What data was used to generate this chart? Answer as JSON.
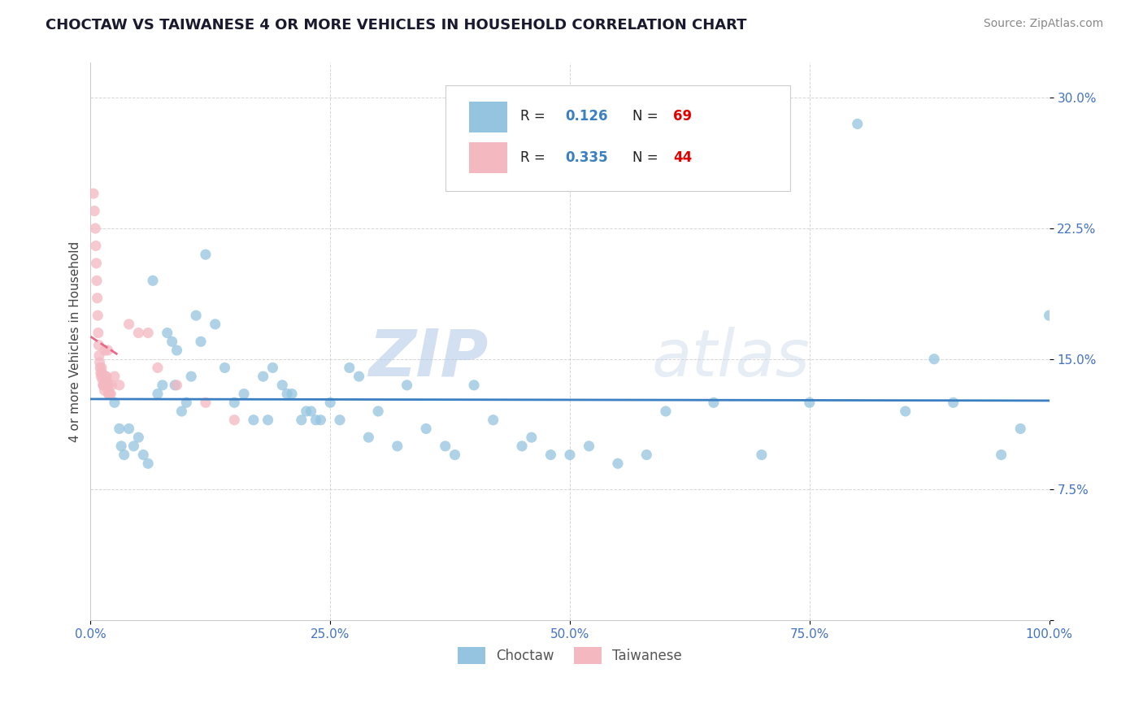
{
  "title": "CHOCTAW VS TAIWANESE 4 OR MORE VEHICLES IN HOUSEHOLD CORRELATION CHART",
  "source": "Source: ZipAtlas.com",
  "ylabel": "4 or more Vehicles in Household",
  "choctaw_color": "#94c4e0",
  "taiwanese_color": "#f4b8c1",
  "choctaw_line_color": "#3a7fc1",
  "taiwanese_line_color": "#e8698a",
  "choctaw_R": 0.126,
  "choctaw_N": 69,
  "taiwanese_R": 0.335,
  "taiwanese_N": 44,
  "choctaw_x": [
    2.5,
    3.0,
    3.2,
    3.5,
    4.0,
    4.5,
    5.0,
    5.5,
    6.0,
    6.5,
    7.0,
    7.5,
    8.0,
    8.5,
    9.0,
    9.5,
    10.0,
    10.5,
    11.0,
    11.5,
    12.0,
    13.0,
    14.0,
    15.0,
    16.0,
    17.0,
    18.0,
    19.0,
    20.0,
    20.5,
    21.0,
    22.0,
    22.5,
    23.0,
    24.0,
    25.0,
    26.0,
    27.0,
    28.0,
    29.0,
    30.0,
    32.0,
    33.0,
    35.0,
    37.0,
    38.0,
    40.0,
    42.0,
    45.0,
    46.0,
    48.0,
    50.0,
    52.0,
    55.0,
    58.0,
    60.0,
    65.0,
    70.0,
    75.0,
    80.0,
    85.0,
    88.0,
    90.0,
    95.0,
    97.0,
    100.0,
    8.8,
    18.5,
    23.5
  ],
  "choctaw_y": [
    12.5,
    11.0,
    10.0,
    9.5,
    11.0,
    10.0,
    10.5,
    9.5,
    9.0,
    19.5,
    13.0,
    13.5,
    16.5,
    16.0,
    15.5,
    12.0,
    12.5,
    14.0,
    17.5,
    16.0,
    21.0,
    17.0,
    14.5,
    12.5,
    13.0,
    11.5,
    14.0,
    14.5,
    13.5,
    13.0,
    13.0,
    11.5,
    12.0,
    12.0,
    11.5,
    12.5,
    11.5,
    14.5,
    14.0,
    10.5,
    12.0,
    10.0,
    13.5,
    11.0,
    10.0,
    9.5,
    13.5,
    11.5,
    10.0,
    10.5,
    9.5,
    9.5,
    10.0,
    9.0,
    9.5,
    12.0,
    12.5,
    9.5,
    12.5,
    28.5,
    12.0,
    15.0,
    12.5,
    9.5,
    11.0,
    17.5,
    13.5,
    11.5,
    11.5
  ],
  "taiwanese_x": [
    0.3,
    0.4,
    0.5,
    0.55,
    0.6,
    0.65,
    0.7,
    0.75,
    0.8,
    0.85,
    0.9,
    0.95,
    1.0,
    1.05,
    1.1,
    1.15,
    1.2,
    1.25,
    1.3,
    1.35,
    1.4,
    1.45,
    1.5,
    1.55,
    1.6,
    1.65,
    1.7,
    1.75,
    1.8,
    1.85,
    1.9,
    1.95,
    2.0,
    2.1,
    2.2,
    2.5,
    3.0,
    4.0,
    5.0,
    6.0,
    7.0,
    9.0,
    12.0,
    15.0
  ],
  "taiwanese_y": [
    24.5,
    23.5,
    22.5,
    21.5,
    20.5,
    19.5,
    18.5,
    17.5,
    16.5,
    15.8,
    15.2,
    14.8,
    14.5,
    14.2,
    14.0,
    14.5,
    14.2,
    13.8,
    13.5,
    13.5,
    13.5,
    13.2,
    15.5,
    14.0,
    13.8,
    14.0,
    13.5,
    13.5,
    15.5,
    13.0,
    13.5,
    13.0,
    13.0,
    13.0,
    13.5,
    14.0,
    13.5,
    17.0,
    16.5,
    16.5,
    14.5,
    13.5,
    12.5,
    11.5
  ],
  "watermark_zip": "ZIP",
  "watermark_atlas": "atlas",
  "xlim": [
    0,
    100
  ],
  "ylim": [
    0,
    32
  ],
  "ytick_vals": [
    0,
    7.5,
    15.0,
    22.5,
    30.0
  ],
  "ytick_labels": [
    "",
    "7.5%",
    "15.0%",
    "22.5%",
    "30.0%"
  ],
  "xtick_vals": [
    0,
    25,
    50,
    75,
    100
  ],
  "xtick_labels": [
    "0.0%",
    "25.0%",
    "50.0%",
    "75.0%",
    "100.0%"
  ],
  "legend_label_choctaw": "Choctaw",
  "legend_label_taiwanese": "Taiwanese",
  "tick_color": "#4472c4",
  "label_color": "#444444",
  "bg_color": "#ffffff",
  "grid_color": "#cccccc",
  "spine_color": "#cccccc"
}
